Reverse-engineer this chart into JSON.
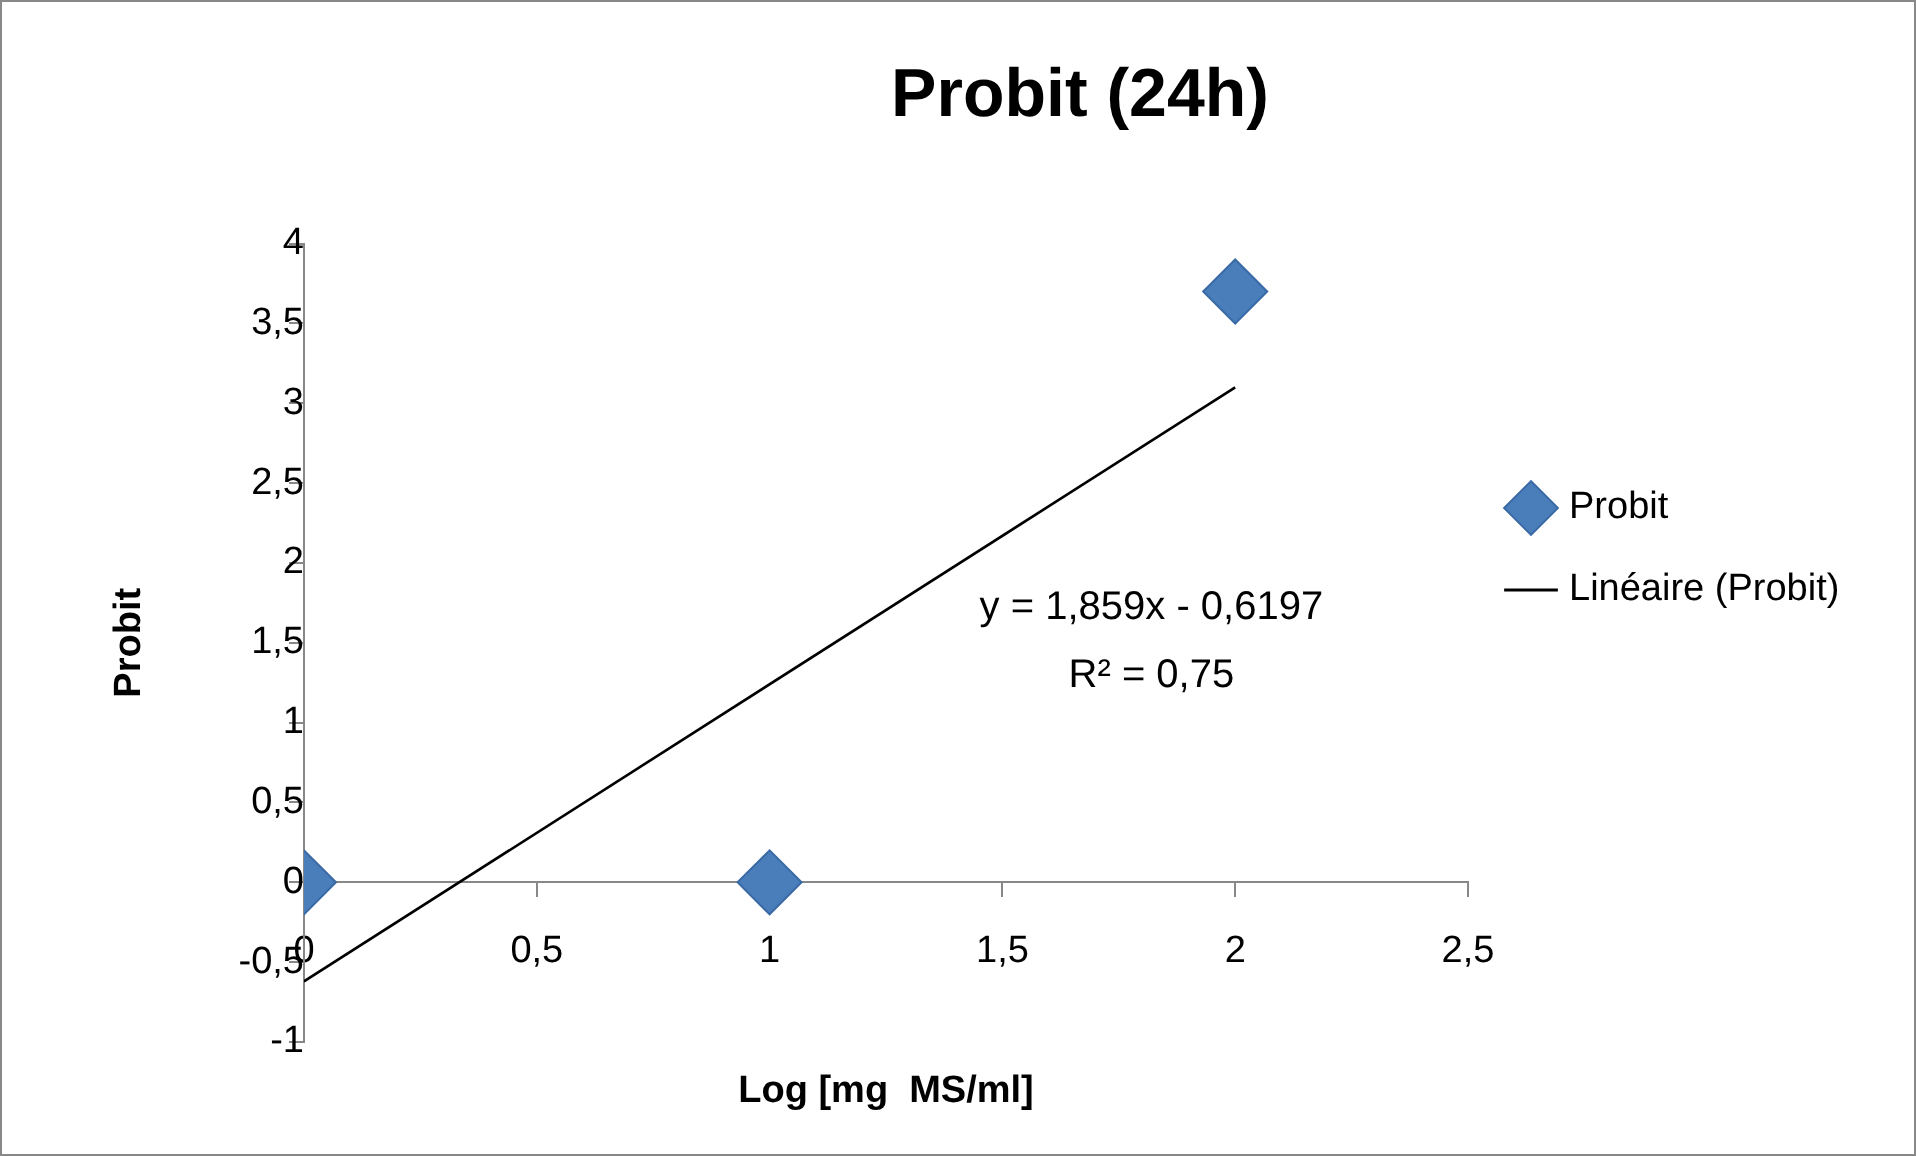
{
  "chart_data": {
    "type": "scatter",
    "title": "Probit (24h)",
    "xlabel": "Log [mg  MS/ml]",
    "ylabel": "Probit",
    "x": [
      0,
      1,
      2
    ],
    "series": [
      {
        "name": "Probit",
        "color": "#4a7ebb",
        "marker": "diamond",
        "values": [
          0,
          0,
          3.7
        ]
      },
      {
        "name": "Linéaire (Probit)",
        "type": "line",
        "color": "#000000",
        "x": [
          0,
          2
        ],
        "values": [
          -0.62,
          3.1
        ]
      }
    ],
    "xlim": [
      0,
      2.5
    ],
    "xticks": [
      0,
      {
        "value": 0.5,
        "label": "0,5"
      },
      1,
      {
        "value": 1.5,
        "label": "1,5"
      },
      2,
      {
        "value": 2.5,
        "label": "2,5"
      }
    ],
    "ylim": [
      -1,
      4
    ],
    "yticks": [
      -1,
      {
        "value": -0.5,
        "label": "-0,5"
      },
      0,
      {
        "value": 0.5,
        "label": "0,5"
      },
      1,
      {
        "value": 1.5,
        "label": "1,5"
      },
      2,
      {
        "value": 2.5,
        "label": "2,5"
      },
      3,
      {
        "value": 3.5,
        "label": "3,5"
      },
      4
    ],
    "annotations": [
      "y = 1,859x - 0,6197",
      "R² = 0,75"
    ],
    "grid": false,
    "legend": "right",
    "line_style": "solid"
  }
}
